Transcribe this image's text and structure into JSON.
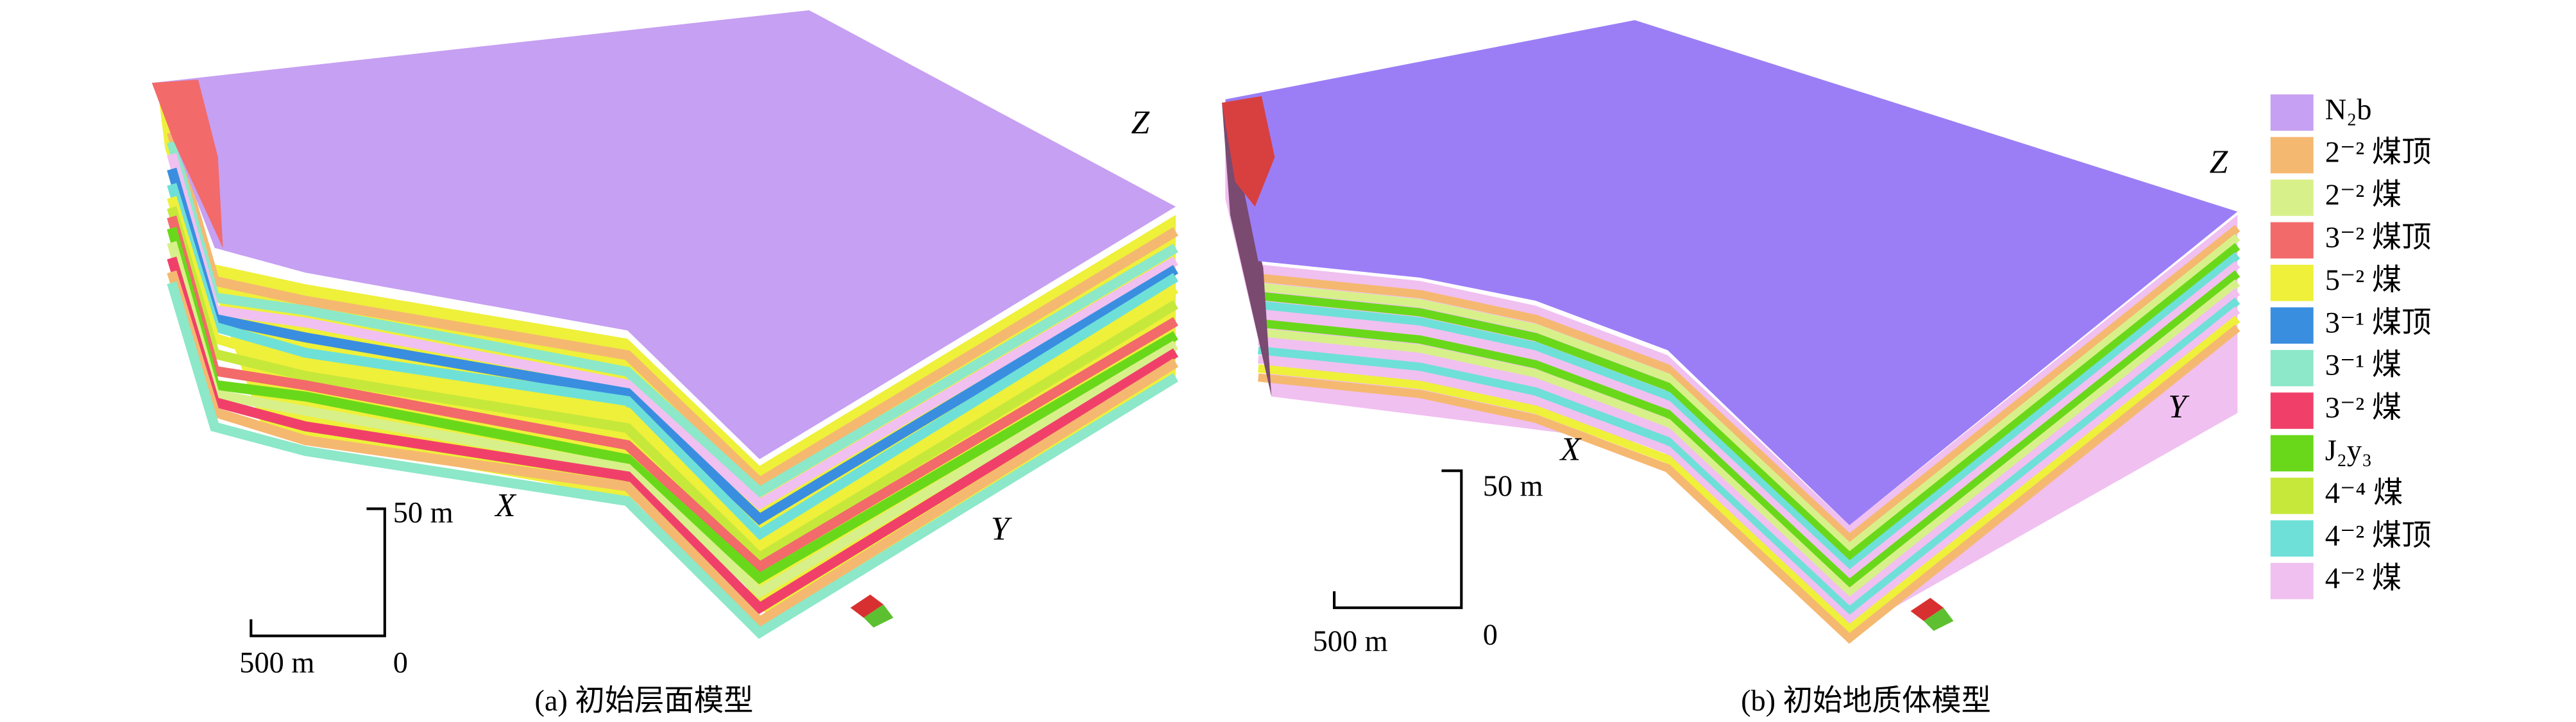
{
  "panels": [
    {
      "caption": "(a) 初始层面模型",
      "axes": {
        "z": "Z",
        "x": "X",
        "y": "Y"
      },
      "scale": {
        "vertical": "50 m",
        "horizontal": "500 m",
        "origin": "0"
      }
    },
    {
      "caption": "(b) 初始地质体模型",
      "axes": {
        "z": "Z",
        "x": "X",
        "y": "Y"
      },
      "scale": {
        "vertical": "50 m",
        "horizontal": "500 m",
        "origin": "0"
      }
    }
  ],
  "legend": {
    "items": [
      {
        "label": "N₂b",
        "color": "#c6a0f2"
      },
      {
        "label": "2⁻² 煤顶",
        "color": "#f5b870"
      },
      {
        "label": "2⁻² 煤",
        "color": "#d8f08a"
      },
      {
        "label": "3⁻² 煤顶",
        "color": "#f26a6a"
      },
      {
        "label": "5⁻² 煤",
        "color": "#eef03a"
      },
      {
        "label": "3⁻¹ 煤顶",
        "color": "#3a8ee0"
      },
      {
        "label": "3⁻¹ 煤",
        "color": "#8ce8c8"
      },
      {
        "label": "3⁻² 煤",
        "color": "#f0406a"
      },
      {
        "label": "J₂y₃",
        "color": "#6ad81a"
      },
      {
        "label": "4⁻⁴ 煤",
        "color": "#c6e83a"
      },
      {
        "label": "4⁻² 煤顶",
        "color": "#6ee0d8"
      },
      {
        "label": "4⁻² 煤",
        "color": "#f0c0f0"
      }
    ]
  }
}
